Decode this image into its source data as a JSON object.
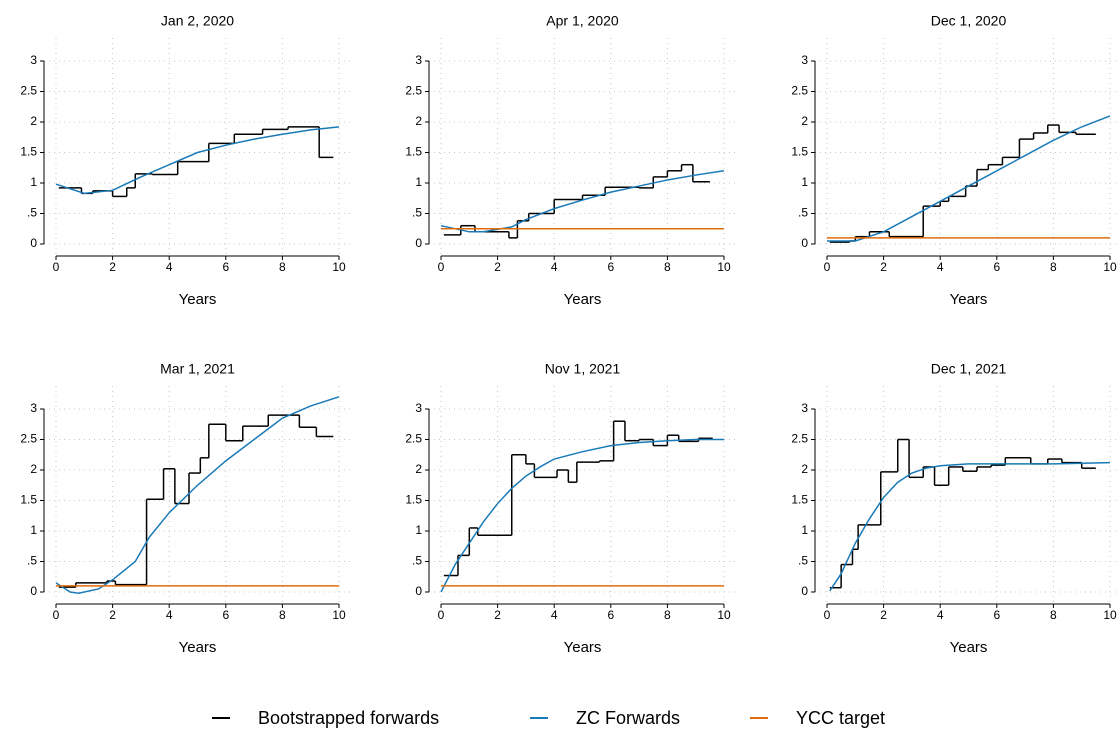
{
  "charts": [
    {
      "type": "line",
      "title": "Jan 2, 2020",
      "xlabel": "Years",
      "xlim": [
        0,
        10
      ],
      "ylim": [
        0,
        3
      ],
      "xticks": [
        0,
        2,
        4,
        6,
        8,
        10
      ],
      "yticks": [
        0,
        {
          "value": 0.5,
          "label": ".5"
        },
        1,
        {
          "value": 1.5,
          "label": "1.5"
        },
        2,
        {
          "value": 2.5,
          "label": "2.5"
        },
        3
      ],
      "grid": true,
      "series": [
        {
          "color": "#000000",
          "edges": [
            0.1,
            0.9,
            1.3,
            2,
            2.5,
            2.8,
            3.4,
            4.3,
            5.4,
            6.3,
            7.3,
            8.2,
            9.3,
            9.8
          ],
          "values": [
            0.92,
            0.83,
            0.87,
            0.78,
            0.92,
            1.15,
            1.14,
            1.35,
            1.65,
            1.8,
            1.88,
            1.92,
            1.42
          ]
        },
        {
          "color": "#1a7ab8",
          "x": [
            0,
            1,
            2,
            3,
            4,
            5,
            6,
            7,
            8,
            9,
            10
          ],
          "values": [
            0.98,
            0.83,
            0.88,
            1.1,
            1.3,
            1.5,
            1.62,
            1.72,
            1.8,
            1.87,
            1.92
          ]
        }
      ]
    },
    {
      "type": "line",
      "title": "Apr 1, 2020",
      "xlabel": "Years",
      "xlim": [
        0,
        10
      ],
      "ylim": [
        0,
        3
      ],
      "xticks": [
        0,
        2,
        4,
        6,
        8,
        10
      ],
      "yticks": [
        0,
        {
          "value": 0.5,
          "label": ".5"
        },
        1,
        {
          "value": 1.5,
          "label": "1.5"
        },
        2,
        {
          "value": 2.5,
          "label": "2.5"
        },
        3
      ],
      "grid": true,
      "series": [
        {
          "color": "#000000",
          "edges": [
            0.1,
            0.7,
            1.2,
            2.4,
            2.7,
            3.1,
            4.0,
            5.0,
            5.8,
            7.0,
            7.5,
            8.0,
            8.5,
            8.9,
            9.5
          ],
          "values": [
            0.15,
            0.3,
            0.2,
            0.1,
            0.38,
            0.5,
            0.73,
            0.8,
            0.93,
            0.92,
            1.1,
            1.2,
            1.3,
            1.02
          ]
        },
        {
          "color": "#1a7ab8",
          "x": [
            0,
            1,
            1.5,
            2.5,
            3,
            4,
            5,
            6,
            7,
            8,
            9,
            10
          ],
          "values": [
            0.3,
            0.2,
            0.2,
            0.28,
            0.4,
            0.58,
            0.72,
            0.85,
            0.95,
            1.05,
            1.13,
            1.2
          ]
        },
        {
          "color": "#e06c0b",
          "x": [
            0,
            10
          ],
          "values": [
            0.25,
            0.25
          ]
        }
      ]
    },
    {
      "type": "line",
      "title": "Dec 1, 2020",
      "xlabel": "Years",
      "xlim": [
        0,
        10
      ],
      "ylim": [
        0,
        3
      ],
      "xticks": [
        0,
        2,
        4,
        6,
        8,
        10
      ],
      "yticks": [
        0,
        {
          "value": 0.5,
          "label": ".5"
        },
        1,
        {
          "value": 1.5,
          "label": "1.5"
        },
        2,
        {
          "value": 2.5,
          "label": "2.5"
        },
        3
      ],
      "grid": true,
      "series": [
        {
          "color": "#000000",
          "edges": [
            0.1,
            0.8,
            1.0,
            1.5,
            2.2,
            3.4,
            4.0,
            4.3,
            4.9,
            5.3,
            5.7,
            6.2,
            6.8,
            7.3,
            7.8,
            8.2,
            8.8,
            9.5
          ],
          "values": [
            0.03,
            0.05,
            0.12,
            0.2,
            0.12,
            0.62,
            0.7,
            0.78,
            0.95,
            1.22,
            1.3,
            1.42,
            1.72,
            1.82,
            1.95,
            1.83,
            1.8
          ]
        },
        {
          "color": "#1a7ab8",
          "x": [
            0,
            1,
            2,
            3,
            4,
            5,
            6,
            7,
            8,
            9,
            10
          ],
          "values": [
            0.05,
            0.05,
            0.2,
            0.45,
            0.7,
            0.95,
            1.2,
            1.45,
            1.7,
            1.92,
            2.1
          ]
        },
        {
          "color": "#e06c0b",
          "x": [
            0,
            10
          ],
          "values": [
            0.1,
            0.1
          ]
        }
      ]
    },
    {
      "type": "line",
      "title": "Mar 1, 2021",
      "xlabel": "Years",
      "xlim": [
        0,
        10
      ],
      "ylim": [
        0,
        3
      ],
      "xticks": [
        0,
        2,
        4,
        6,
        8,
        10
      ],
      "yticks": [
        0,
        {
          "value": 0.5,
          "label": ".5"
        },
        1,
        {
          "value": 1.5,
          "label": "1.5"
        },
        2,
        {
          "value": 2.5,
          "label": "2.5"
        },
        3
      ],
      "grid": true,
      "series": [
        {
          "color": "#000000",
          "edges": [
            0.1,
            0.7,
            1.8,
            2.1,
            3.2,
            3.8,
            4.2,
            4.7,
            5.1,
            5.4,
            6.0,
            6.6,
            7.5,
            8.6,
            9.2,
            9.8
          ],
          "values": [
            0.08,
            0.15,
            0.18,
            0.12,
            1.52,
            2.02,
            1.45,
            1.95,
            2.2,
            2.75,
            2.48,
            2.72,
            2.9,
            2.7,
            2.55
          ]
        },
        {
          "color": "#1a7ab8",
          "x": [
            0,
            0.5,
            0.8,
            1.5,
            2,
            2.8,
            3.3,
            4,
            5,
            6,
            7,
            8,
            9,
            10
          ],
          "values": [
            0.15,
            0,
            -0.02,
            0.05,
            0.2,
            0.5,
            0.9,
            1.3,
            1.75,
            2.15,
            2.5,
            2.85,
            3.05,
            3.2
          ]
        },
        {
          "color": "#e06c0b",
          "x": [
            0,
            10
          ],
          "values": [
            0.1,
            0.1
          ]
        }
      ]
    },
    {
      "type": "line",
      "title": "Nov 1, 2021",
      "xlabel": "Years",
      "xlim": [
        0,
        10
      ],
      "ylim": [
        0,
        3
      ],
      "xticks": [
        0,
        2,
        4,
        6,
        8,
        10
      ],
      "yticks": [
        0,
        {
          "value": 0.5,
          "label": ".5"
        },
        1,
        {
          "value": 1.5,
          "label": "1.5"
        },
        2,
        {
          "value": 2.5,
          "label": "2.5"
        },
        3
      ],
      "grid": true,
      "series": [
        {
          "color": "#000000",
          "edges": [
            0.1,
            0.6,
            1.0,
            1.3,
            2.5,
            3.0,
            3.3,
            4.1,
            4.5,
            4.8,
            5.6,
            6.1,
            6.5,
            7.0,
            7.5,
            8.0,
            8.4,
            9.1,
            9.6
          ],
          "values": [
            0.27,
            0.6,
            1.05,
            0.93,
            2.25,
            2.1,
            1.88,
            2.0,
            1.8,
            2.13,
            2.15,
            2.8,
            2.48,
            2.5,
            2.4,
            2.57,
            2.47,
            2.52
          ]
        },
        {
          "color": "#1a7ab8",
          "x": [
            0,
            0.5,
            1,
            1.5,
            2,
            2.5,
            3,
            3.5,
            4,
            5,
            6,
            7,
            8,
            9,
            10
          ],
          "values": [
            0,
            0.45,
            0.8,
            1.15,
            1.45,
            1.7,
            1.9,
            2.05,
            2.18,
            2.3,
            2.4,
            2.45,
            2.48,
            2.5,
            2.5
          ]
        },
        {
          "color": "#e06c0b",
          "x": [
            0,
            10
          ],
          "values": [
            0.1,
            0.1
          ]
        }
      ]
    },
    {
      "type": "line",
      "title": "Dec 1, 2021",
      "xlabel": "Years",
      "xlim": [
        0,
        10
      ],
      "ylim": [
        0,
        3
      ],
      "xticks": [
        0,
        2,
        4,
        6,
        8,
        10
      ],
      "yticks": [
        0,
        {
          "value": 0.5,
          "label": ".5"
        },
        1,
        {
          "value": 1.5,
          "label": "1.5"
        },
        2,
        {
          "value": 2.5,
          "label": "2.5"
        },
        3
      ],
      "grid": true,
      "series": [
        {
          "color": "#000000",
          "edges": [
            0.1,
            0.5,
            0.9,
            1.1,
            1.9,
            2.5,
            2.9,
            3.4,
            3.8,
            4.3,
            4.8,
            5.3,
            5.8,
            6.3,
            7.2,
            7.8,
            8.3,
            9.0,
            9.5
          ],
          "values": [
            0.07,
            0.45,
            0.7,
            1.1,
            1.97,
            2.5,
            1.88,
            2.05,
            1.75,
            2.05,
            1.98,
            2.05,
            2.08,
            2.2,
            2.1,
            2.18,
            2.12,
            2.03
          ]
        },
        {
          "color": "#1a7ab8",
          "x": [
            0.1,
            0.5,
            1,
            1.5,
            2,
            2.5,
            3,
            3.5,
            4,
            5,
            6,
            7,
            8,
            9,
            10
          ],
          "values": [
            0.02,
            0.3,
            0.8,
            1.2,
            1.55,
            1.8,
            1.95,
            2.03,
            2.07,
            2.1,
            2.1,
            2.1,
            2.1,
            2.11,
            2.12
          ]
        }
      ]
    }
  ],
  "legend": {
    "items": [
      {
        "name": "Bootstrapped forwards",
        "color": "#000000"
      },
      {
        "name": "ZC Forwards",
        "color": "#1a7ab8"
      },
      {
        "name": "YCC target",
        "color": "#e06c0b"
      }
    ]
  }
}
